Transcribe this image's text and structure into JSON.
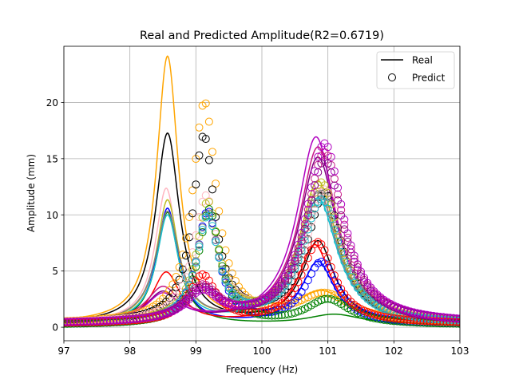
{
  "chart_data": {
    "type": "line",
    "title": "Real and Predicted Amplitude(R2=0.6719)",
    "xlabel": "Frequency (Hz)",
    "ylabel": "Amplitude (mm)",
    "xlim": [
      97,
      103
    ],
    "ylim": [
      -1.2,
      25.0
    ],
    "xticks": [
      97,
      98,
      99,
      100,
      101,
      102,
      103
    ],
    "xtick_labels": [
      "97",
      "98",
      "99",
      "100",
      "101",
      "102",
      "103"
    ],
    "yticks": [
      0,
      5,
      10,
      15,
      20
    ],
    "ytick_labels": [
      "0",
      "5",
      "10",
      "15",
      "20"
    ],
    "grid": true,
    "legend": {
      "position": "top-right",
      "entries": [
        {
          "label": "Real",
          "marker": "line",
          "color": "#000000"
        },
        {
          "label": "Predict",
          "marker": "circle",
          "color": "#000000"
        }
      ]
    },
    "series": [
      {
        "color": "#ffa500",
        "real": {
          "f1": 98.57,
          "a1": 23.7,
          "w1": 0.2,
          "f2": 100.9,
          "a2": 2.8,
          "w2": 0.5,
          "base": 0.3
        },
        "pred": {
          "f1": 99.13,
          "a1": 19.6,
          "w1": 0.22,
          "f2": 100.95,
          "a2": 2.5,
          "w2": 0.5,
          "base": 0.3
        }
      },
      {
        "color": "#000000",
        "real": {
          "f1": 98.57,
          "a1": 16.9,
          "w1": 0.22,
          "f2": 100.85,
          "a2": 7.3,
          "w2": 0.3,
          "base": 0.25
        },
        "pred": {
          "f1": 99.12,
          "a1": 16.5,
          "w1": 0.2,
          "f2": 100.95,
          "a2": 11.5,
          "w2": 0.33,
          "base": 0.25
        }
      },
      {
        "color": "#ffb6c1",
        "real": {
          "f1": 98.55,
          "a1": 11.8,
          "w1": 0.2,
          "f2": 100.85,
          "a2": 12.0,
          "w2": 0.35,
          "base": 0.3
        },
        "pred": {
          "f1": 99.15,
          "a1": 11.0,
          "w1": 0.22,
          "f2": 100.95,
          "a2": 11.8,
          "w2": 0.35,
          "base": 0.3
        }
      },
      {
        "color": "#bcbd22",
        "real": {
          "f1": 98.57,
          "a1": 10.8,
          "w1": 0.2,
          "f2": 100.85,
          "a2": 12.7,
          "w2": 0.35,
          "base": 0.25
        },
        "pred": {
          "f1": 99.18,
          "a1": 10.5,
          "w1": 0.2,
          "f2": 100.9,
          "a2": 12.5,
          "w2": 0.35,
          "base": 0.25
        }
      },
      {
        "color": "#0000ff",
        "real": {
          "f1": 98.57,
          "a1": 10.3,
          "w1": 0.2,
          "f2": 100.85,
          "a2": 5.6,
          "w2": 0.3,
          "base": 0.2
        },
        "pred": {
          "f1": 99.18,
          "a1": 10.0,
          "w1": 0.2,
          "f2": 100.9,
          "a2": 5.5,
          "w2": 0.3,
          "base": 0.2
        }
      },
      {
        "color": "#008000",
        "real": {
          "f1": 98.57,
          "a1": 10.0,
          "w1": 0.2,
          "f2": 101.1,
          "a2": 0.9,
          "w2": 0.5,
          "base": 0.2
        },
        "pred": {
          "f1": 99.2,
          "a1": 10.2,
          "w1": 0.2,
          "f2": 101.0,
          "a2": 2.2,
          "w2": 0.4,
          "base": 0.2
        }
      },
      {
        "color": "#808080",
        "real": {
          "f1": 98.57,
          "a1": 9.8,
          "w1": 0.22,
          "f2": 100.85,
          "a2": 11.8,
          "w2": 0.35,
          "base": 0.25
        },
        "pred": {
          "f1": 99.18,
          "a1": 9.5,
          "w1": 0.2,
          "f2": 100.9,
          "a2": 11.5,
          "w2": 0.35,
          "base": 0.25
        }
      },
      {
        "color": "#17becf",
        "real": {
          "f1": 98.57,
          "a1": 9.5,
          "w1": 0.2,
          "f2": 100.85,
          "a2": 11.2,
          "w2": 0.35,
          "base": 0.25
        },
        "pred": {
          "f1": 99.18,
          "a1": 9.3,
          "w1": 0.2,
          "f2": 100.9,
          "a2": 11.0,
          "w2": 0.35,
          "base": 0.25
        }
      },
      {
        "color": "#ff0000",
        "real": {
          "f1": 98.55,
          "a1": 4.5,
          "w1": 0.25,
          "f2": 100.8,
          "a2": 7.0,
          "w2": 0.3,
          "base": 0.3
        },
        "pred": {
          "f1": 99.1,
          "a1": 4.2,
          "w1": 0.25,
          "f2": 100.85,
          "a2": 7.2,
          "w2": 0.3,
          "base": 0.3
        }
      },
      {
        "color": "#c71585",
        "real": {
          "f1": 98.5,
          "a1": 3.0,
          "w1": 0.3,
          "f2": 100.85,
          "a2": 15.7,
          "w2": 0.35,
          "base": 0.3
        },
        "pred": {
          "f1": 99.1,
          "a1": 3.0,
          "w1": 0.3,
          "f2": 100.95,
          "a2": 15.2,
          "w2": 0.35,
          "base": 0.3
        }
      },
      {
        "color": "#800080",
        "real": {
          "f1": 98.5,
          "a1": 2.6,
          "w1": 0.3,
          "f2": 100.85,
          "a2": 14.8,
          "w2": 0.35,
          "base": 0.3
        },
        "pred": {
          "f1": 99.1,
          "a1": 2.8,
          "w1": 0.3,
          "f2": 100.95,
          "a2": 14.5,
          "w2": 0.35,
          "base": 0.3
        }
      },
      {
        "color": "#b000c0",
        "real": {
          "f1": 98.5,
          "a1": 2.4,
          "w1": 0.3,
          "f2": 100.82,
          "a2": 16.6,
          "w2": 0.35,
          "base": 0.3
        },
        "pred": {
          "f1": 99.1,
          "a1": 2.5,
          "w1": 0.3,
          "f2": 100.95,
          "a2": 16.0,
          "w2": 0.35,
          "base": 0.3
        }
      }
    ]
  }
}
